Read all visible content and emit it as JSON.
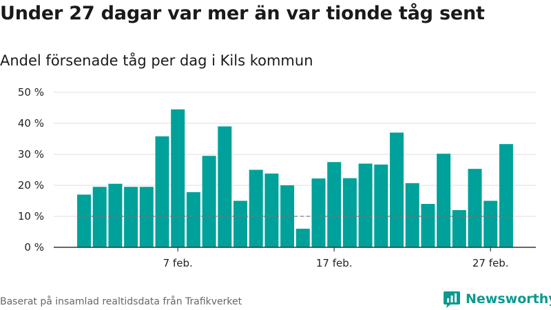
{
  "title": "Under 27 dagar var mer än var tionde tåg sent",
  "subtitle": "Andel försenade tåg per dag i Kils kommun",
  "source": "Baserat på insamlad realtidsdata från Trafikverket",
  "brand": "Newsworthy",
  "colors": {
    "bar": "#00a19a",
    "grid": "#dddddd",
    "axis": "#333333",
    "reference": "#777777",
    "brand": "#0a9a8e"
  },
  "chart_data": {
    "type": "bar",
    "x_start": "2024-02-01",
    "x_interval": "day",
    "values": [
      17,
      19.5,
      20.5,
      19.5,
      19.5,
      35.8,
      44.5,
      17.8,
      29.5,
      39,
      15,
      25,
      23.8,
      20,
      6,
      22.2,
      27.5,
      22.3,
      27,
      26.7,
      37,
      20.7,
      14,
      30.2,
      12,
      25.3,
      15,
      33.3
    ],
    "ylim": [
      0,
      50
    ],
    "y_ticks": [
      "0 %",
      "10 %",
      "20 %",
      "30 %",
      "40 %",
      "50 %"
    ],
    "y_tick_values": [
      0,
      10,
      20,
      30,
      40,
      50
    ],
    "x_ticks": [
      "7 feb.",
      "17 feb.",
      "27 feb."
    ],
    "x_tick_indices": [
      6,
      16,
      26
    ],
    "reference_line": 10,
    "grid": true,
    "legend": "none"
  }
}
